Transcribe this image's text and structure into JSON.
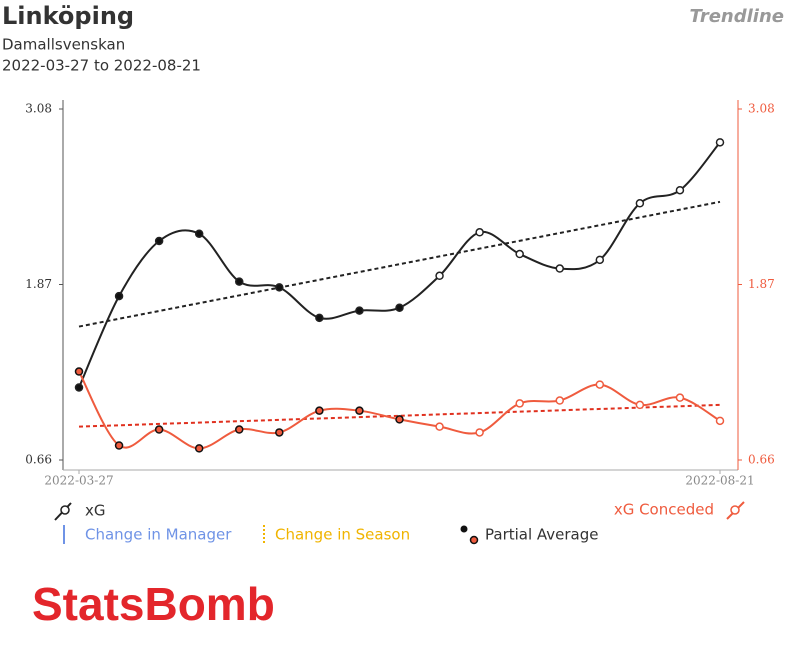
{
  "header": {
    "title": "Linköping",
    "subtitle": "Damallsvenskan",
    "date_range": "2022-03-27 to 2022-08-21",
    "mode": "Trendline"
  },
  "chart_data": {
    "type": "line",
    "categories": [
      "2022-03-27",
      null,
      null,
      null,
      null,
      null,
      null,
      null,
      null,
      null,
      null,
      null,
      null,
      null,
      null,
      null,
      "2022-08-21"
    ],
    "series": [
      {
        "name": "xG",
        "color": "#222222",
        "trend_color": "#222222",
        "axis": "y",
        "values": [
          1.16,
          1.79,
          2.17,
          2.22,
          1.89,
          1.85,
          1.64,
          1.69,
          1.71,
          1.93,
          2.23,
          2.08,
          1.98,
          2.04,
          2.43,
          2.52,
          2.85
        ],
        "partial": [
          true,
          true,
          true,
          true,
          true,
          true,
          true,
          true,
          true,
          false,
          false,
          false,
          false,
          false,
          false,
          false,
          false
        ],
        "trend": [
          1.58,
          2.44
        ]
      },
      {
        "name": "xG Conceded",
        "color": "#ef5b3e",
        "trend_color": "#e0301e",
        "axis": "y2",
        "values": [
          1.27,
          0.76,
          0.87,
          0.74,
          0.87,
          0.85,
          1.0,
          1.0,
          0.94,
          0.89,
          0.85,
          1.05,
          1.07,
          1.18,
          1.04,
          1.09,
          0.93
        ],
        "partial": [
          true,
          true,
          true,
          true,
          true,
          true,
          true,
          true,
          true,
          false,
          false,
          false,
          false,
          false,
          false,
          false,
          false
        ],
        "trend": [
          0.89,
          1.04
        ]
      }
    ],
    "ylim": [
      0.66,
      3.08
    ],
    "yticks": [
      0.66,
      1.87,
      3.08
    ],
    "y2lim": [
      0.66,
      3.08
    ],
    "y2ticks": [
      0.66,
      1.87,
      3.08
    ],
    "legend_extra": [
      {
        "name": "Change in Manager",
        "color": "#6f93e6"
      },
      {
        "name": "Change in Season",
        "color": "#f0b400"
      },
      {
        "name": "Partial Average"
      }
    ]
  },
  "logo": "StatsBomb"
}
